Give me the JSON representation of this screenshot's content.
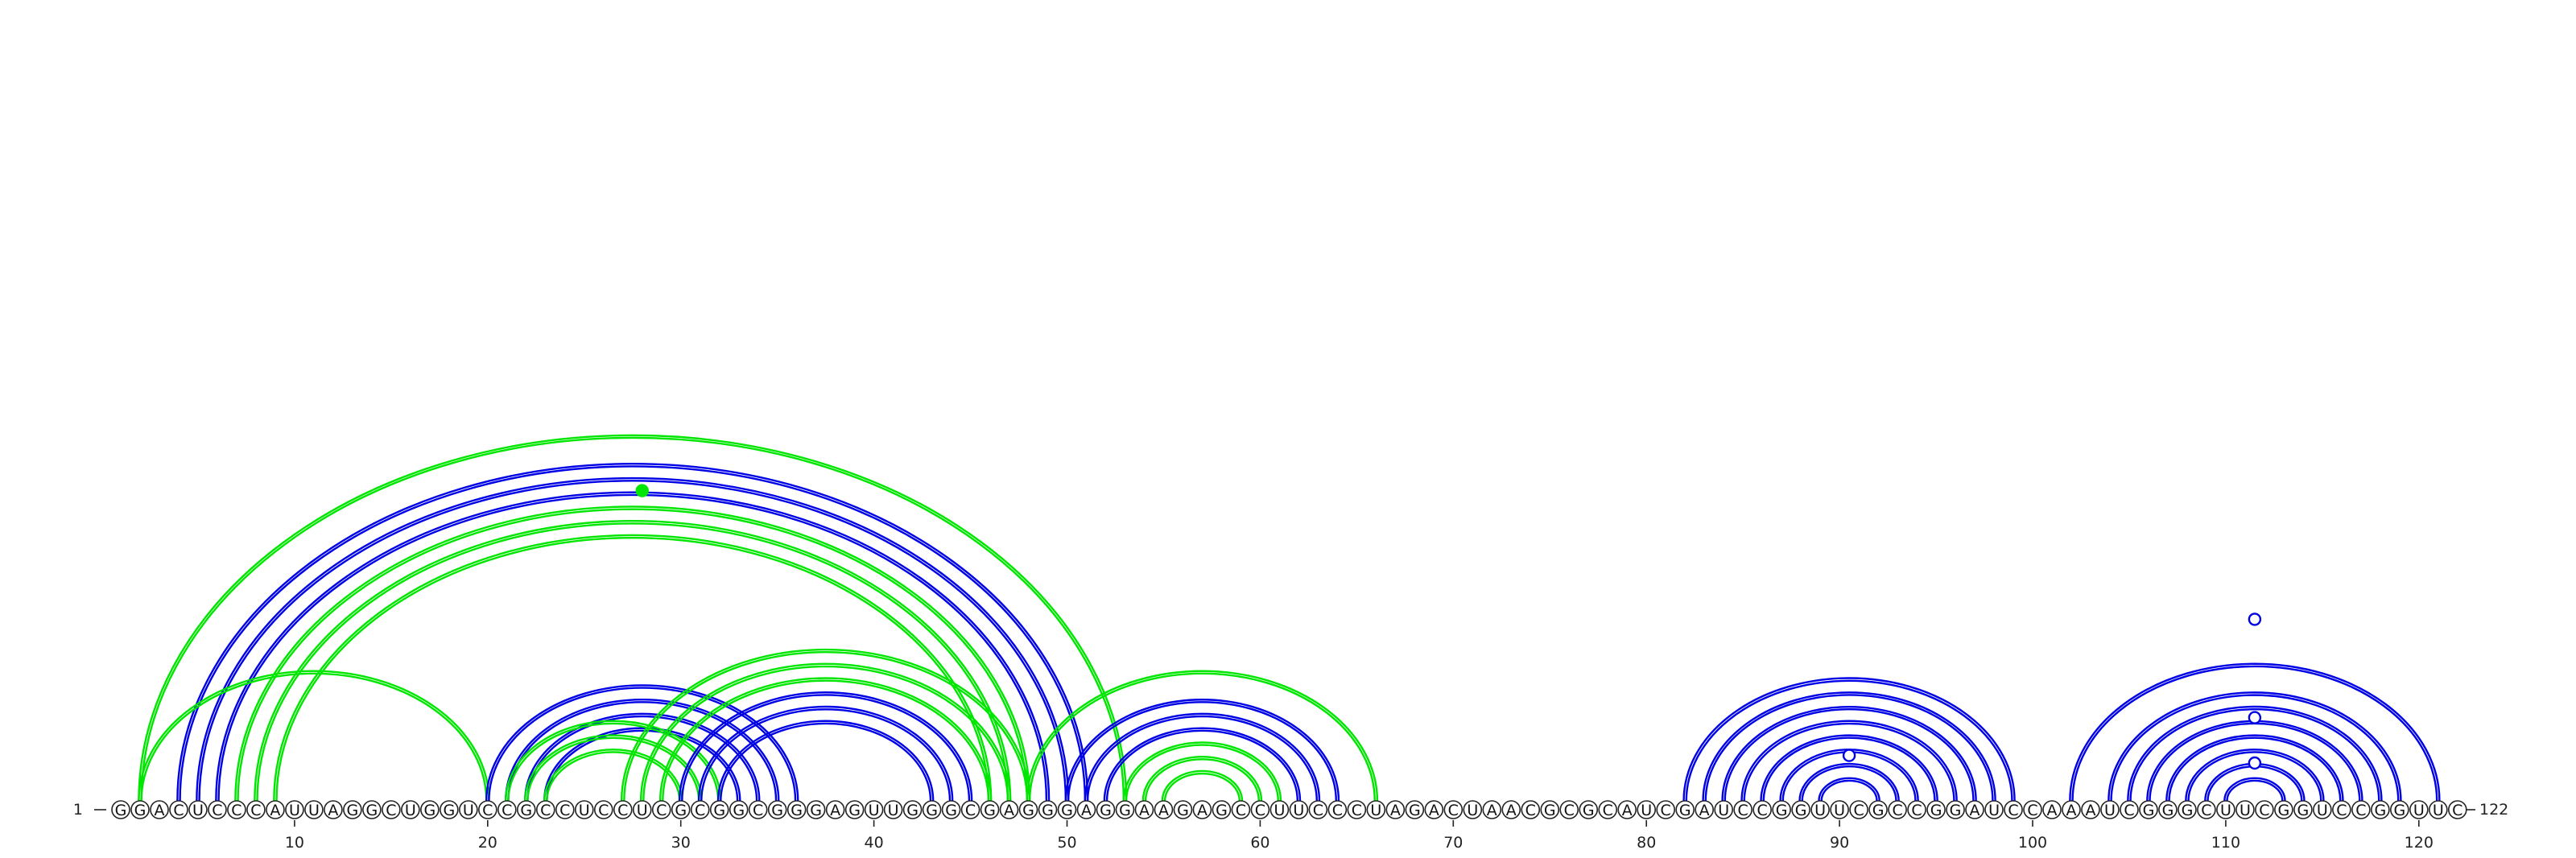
{
  "sequence": "GGACUCCCAUUAGGCUGGUCCGCCUCCUCGCGGCGGGAGUUGGGCGAGGGAGGAAGAGCCUUCCCUAGACUAACGCGCAUCGAUCCGGUUCGCCGGAUCCAAAUCGGGCUUCGGUCCGGUUC",
  "start_label": "1",
  "end_label": "122",
  "ticks": [
    10,
    20,
    30,
    40,
    50,
    60,
    70,
    80,
    90,
    100,
    110,
    120
  ],
  "colors": {
    "blue": "#0000e6",
    "green": "#00e600",
    "backbone": "#222222"
  },
  "chart_data": {
    "type": "arc-diagram",
    "length": 122,
    "arcs": [
      {
        "i": 2,
        "j": 53,
        "color": "green"
      },
      {
        "i": 4,
        "j": 51,
        "color": "blue"
      },
      {
        "i": 5,
        "j": 50,
        "color": "blue"
      },
      {
        "i": 6,
        "j": 49,
        "color": "blue"
      },
      {
        "i": 7,
        "j": 48,
        "color": "green"
      },
      {
        "i": 8,
        "j": 47,
        "color": "green"
      },
      {
        "i": 9,
        "j": 46,
        "color": "green"
      },
      {
        "i": 2,
        "j": 20,
        "color": "green"
      },
      {
        "i": 20,
        "j": 36,
        "color": "blue"
      },
      {
        "i": 21,
        "j": 35,
        "color": "blue"
      },
      {
        "i": 22,
        "j": 34,
        "color": "blue"
      },
      {
        "i": 23,
        "j": 33,
        "color": "blue"
      },
      {
        "i": 21,
        "j": 32,
        "color": "green"
      },
      {
        "i": 22,
        "j": 31,
        "color": "green"
      },
      {
        "i": 23,
        "j": 30,
        "color": "green"
      },
      {
        "i": 27,
        "j": 48,
        "color": "green"
      },
      {
        "i": 28,
        "j": 47,
        "color": "green"
      },
      {
        "i": 29,
        "j": 46,
        "color": "green"
      },
      {
        "i": 30,
        "j": 45,
        "color": "blue"
      },
      {
        "i": 31,
        "j": 44,
        "color": "blue"
      },
      {
        "i": 32,
        "j": 43,
        "color": "blue"
      },
      {
        "i": 48,
        "j": 66,
        "color": "green"
      },
      {
        "i": 50,
        "j": 64,
        "color": "blue"
      },
      {
        "i": 51,
        "j": 63,
        "color": "blue"
      },
      {
        "i": 52,
        "j": 62,
        "color": "blue"
      },
      {
        "i": 53,
        "j": 61,
        "color": "green"
      },
      {
        "i": 54,
        "j": 60,
        "color": "green"
      },
      {
        "i": 55,
        "j": 59,
        "color": "green"
      },
      {
        "i": 82,
        "j": 99,
        "color": "blue"
      },
      {
        "i": 83,
        "j": 98,
        "color": "blue"
      },
      {
        "i": 84,
        "j": 97,
        "color": "blue"
      },
      {
        "i": 85,
        "j": 96,
        "color": "blue"
      },
      {
        "i": 86,
        "j": 95,
        "color": "blue"
      },
      {
        "i": 87,
        "j": 94,
        "color": "blue"
      },
      {
        "i": 88,
        "j": 93,
        "color": "blue"
      },
      {
        "i": 89,
        "j": 92,
        "color": "blue"
      },
      {
        "i": 102,
        "j": 121,
        "color": "blue"
      },
      {
        "i": 104,
        "j": 119,
        "color": "blue"
      },
      {
        "i": 105,
        "j": 118,
        "color": "blue"
      },
      {
        "i": 106,
        "j": 117,
        "color": "blue"
      },
      {
        "i": 107,
        "j": 116,
        "color": "blue"
      },
      {
        "i": 108,
        "j": 115,
        "color": "blue"
      },
      {
        "i": 109,
        "j": 114,
        "color": "blue"
      },
      {
        "i": 110,
        "j": 113,
        "color": "blue"
      }
    ],
    "markers": [
      {
        "pos": 28,
        "height": 0.82,
        "color": "green",
        "filled": true
      },
      {
        "pos": 90.5,
        "height": 0.12,
        "color": "blue",
        "filled": false
      },
      {
        "pos": 111.5,
        "height": 0.48,
        "color": "blue",
        "filled": false
      },
      {
        "pos": 111.5,
        "height": 0.22,
        "color": "blue",
        "filled": false
      },
      {
        "pos": 111.5,
        "height": 0.1,
        "color": "blue",
        "filled": false
      }
    ]
  }
}
